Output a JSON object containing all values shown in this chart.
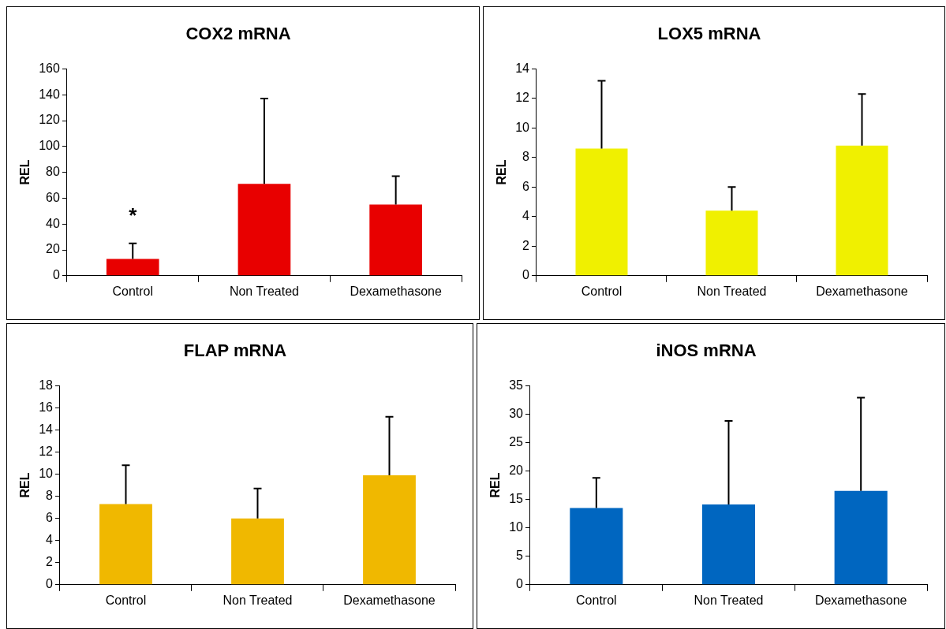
{
  "chart_data": [
    {
      "type": "bar",
      "title": "COX2 mRNA",
      "ylabel": "REL",
      "categories": [
        "Control",
        "Non Treated",
        "Dexamethasone"
      ],
      "series": [
        {
          "color": "#e80000",
          "values": [
            13,
            71,
            55
          ],
          "errors": [
            [
              13,
              25
            ],
            [
              71,
              137
            ],
            [
              55,
              77
            ]
          ]
        }
      ],
      "ylim": [
        0,
        160
      ],
      "yticks": [
        0,
        20,
        40,
        60,
        80,
        100,
        120,
        140,
        160
      ],
      "grid": false,
      "legend": false,
      "annotations": [
        "*"
      ]
    },
    {
      "type": "bar",
      "title": "LOX5 mRNA",
      "ylabel": "REL",
      "categories": [
        "Control",
        "Non Treated",
        "Dexamethasone"
      ],
      "series": [
        {
          "color": "#f0f000",
          "values": [
            8.6,
            4.4,
            8.8
          ],
          "errors": [
            [
              8.6,
              13.2
            ],
            [
              4.4,
              6.0
            ],
            [
              8.8,
              12.3
            ]
          ]
        }
      ],
      "ylim": [
        0,
        14
      ],
      "yticks": [
        0,
        2,
        4,
        6,
        8,
        10,
        12,
        14
      ],
      "grid": false,
      "legend": false
    },
    {
      "type": "bar",
      "title": "FLAP mRNA",
      "ylabel": "REL",
      "categories": [
        "Control",
        "Non Treated",
        "Dexamethasone"
      ],
      "series": [
        {
          "color": "#f0b800",
          "values": [
            7.3,
            6.0,
            9.9
          ],
          "errors": [
            [
              7.3,
              10.8
            ],
            [
              6.0,
              8.7
            ],
            [
              9.9,
              15.2
            ]
          ]
        }
      ],
      "ylim": [
        0,
        18
      ],
      "yticks": [
        0,
        2,
        4,
        6,
        8,
        10,
        12,
        14,
        16,
        18
      ],
      "grid": false,
      "legend": false
    },
    {
      "type": "bar",
      "title": "iNOS mRNA",
      "ylabel": "REL",
      "categories": [
        "Control",
        "Non Treated",
        "Dexamethasone"
      ],
      "series": [
        {
          "color": "#0066c0",
          "values": [
            13.5,
            14.1,
            16.5
          ],
          "errors": [
            [
              13.5,
              18.8
            ],
            [
              14.1,
              28.8
            ],
            [
              16.5,
              32.9
            ]
          ]
        }
      ],
      "ylim": [
        0,
        35
      ],
      "yticks": [
        0,
        5,
        10,
        15,
        20,
        25,
        30,
        35
      ],
      "grid": false,
      "legend": false
    }
  ]
}
